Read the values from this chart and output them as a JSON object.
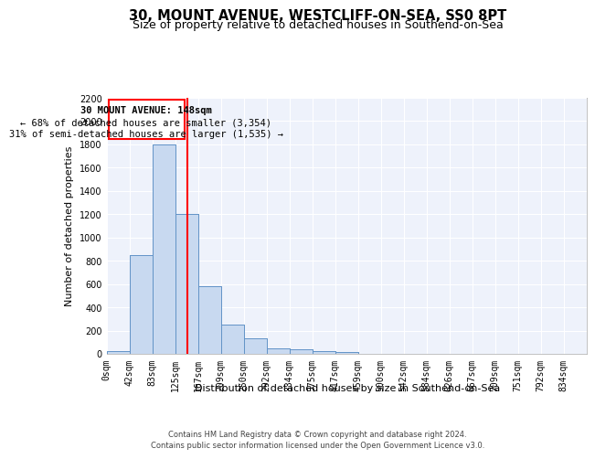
{
  "title": "30, MOUNT AVENUE, WESTCLIFF-ON-SEA, SS0 8PT",
  "subtitle": "Size of property relative to detached houses in Southend-on-Sea",
  "xlabel": "Distribution of detached houses by size in Southend-on-Sea",
  "ylabel": "Number of detached properties",
  "footer_line1": "Contains HM Land Registry data © Crown copyright and database right 2024.",
  "footer_line2": "Contains public sector information licensed under the Open Government Licence v3.0.",
  "bin_labels": [
    "0sqm",
    "42sqm",
    "83sqm",
    "125sqm",
    "167sqm",
    "209sqm",
    "250sqm",
    "292sqm",
    "334sqm",
    "375sqm",
    "417sqm",
    "459sqm",
    "500sqm",
    "542sqm",
    "584sqm",
    "626sqm",
    "667sqm",
    "709sqm",
    "751sqm",
    "792sqm",
    "834sqm"
  ],
  "bar_heights": [
    25,
    850,
    1800,
    1200,
    580,
    255,
    130,
    45,
    40,
    25,
    15,
    0,
    0,
    0,
    0,
    0,
    0,
    0,
    0,
    0,
    0
  ],
  "bar_color": "#c8d9f0",
  "bar_edge_color": "#5b8ec4",
  "ylim": [
    0,
    2200
  ],
  "yticks": [
    0,
    200,
    400,
    600,
    800,
    1000,
    1200,
    1400,
    1600,
    1800,
    2000,
    2200
  ],
  "annotation_text_line1": "30 MOUNT AVENUE: 148sqm",
  "annotation_text_line2": "← 68% of detached houses are smaller (3,354)",
  "annotation_text_line3": "31% of semi-detached houses are larger (1,535) →",
  "bg_color": "#eef2fb",
  "grid_color": "#ffffff",
  "title_fontsize": 10.5,
  "subtitle_fontsize": 9,
  "axis_label_fontsize": 8,
  "tick_fontsize": 7,
  "footer_fontsize": 6
}
